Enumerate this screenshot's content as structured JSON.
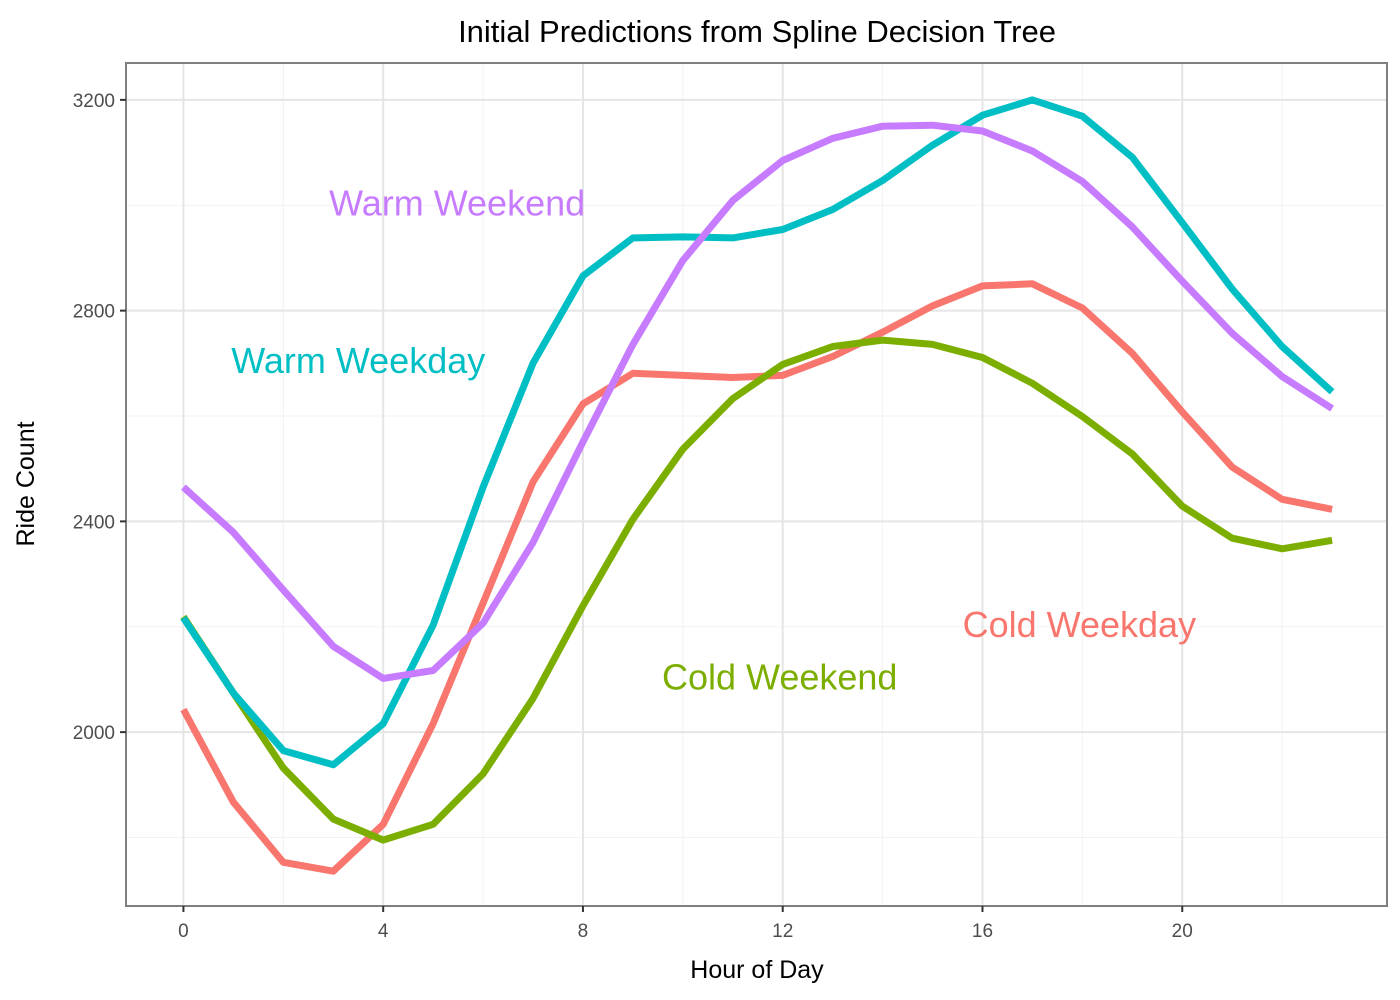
{
  "chart_data": {
    "type": "line",
    "title": "Initial Predictions from Spline Decision Tree",
    "xlabel": "Hour of Day",
    "ylabel": "Ride Count",
    "xlim": [
      -1.15,
      24.1
    ],
    "ylim": [
      1670,
      3270
    ],
    "xticks": [
      0,
      4,
      8,
      12,
      16,
      20
    ],
    "xtick_labels": [
      "0",
      "4",
      "8",
      "12",
      "16",
      "20"
    ],
    "yticks": [
      2000,
      2400,
      2800,
      3200
    ],
    "ytick_labels": [
      "2000",
      "2400",
      "2800",
      "3200"
    ],
    "grid": true,
    "legend": "none (direct labels)",
    "x": [
      0,
      1,
      2,
      3,
      4,
      5,
      6,
      7,
      8,
      9,
      10,
      11,
      12,
      13,
      14,
      15,
      16,
      17,
      18,
      19,
      20,
      21,
      22,
      23
    ],
    "series": [
      {
        "name": "Cold Weekday",
        "color": "#F8766D",
        "label_at": [
          17.94,
          2203
        ],
        "values": [
          2043,
          1867,
          1753,
          1736,
          1825,
          2016,
          2245,
          2475,
          2623,
          2681,
          2677,
          2673,
          2677,
          2713,
          2759,
          2809,
          2847,
          2851,
          2805,
          2719,
          2608,
          2503,
          2442,
          2423
        ]
      },
      {
        "name": "Cold Weekend",
        "color": "#7CAE00",
        "label_at": [
          11.94,
          2104
        ],
        "values": [
          2219,
          2074,
          1932,
          1835,
          1795,
          1825,
          1921,
          2064,
          2240,
          2404,
          2537,
          2633,
          2698,
          2732,
          2744,
          2736,
          2711,
          2662,
          2599,
          2528,
          2429,
          2368,
          2348,
          2364
        ]
      },
      {
        "name": "Warm Weekday",
        "color": "#00BFC4",
        "label_at": [
          3.5,
          2704
        ],
        "values": [
          2217,
          2074,
          1965,
          1938,
          2016,
          2203,
          2465,
          2700,
          2866,
          2938,
          2940,
          2938,
          2954,
          2992,
          3047,
          3114,
          3171,
          3200,
          3169,
          3091,
          2967,
          2841,
          2732,
          2646
        ]
      },
      {
        "name": "Warm Weekend",
        "color": "#C77CFF",
        "label_at": [
          5.48,
          3003
        ],
        "values": [
          2465,
          2379,
          2270,
          2163,
          2102,
          2117,
          2207,
          2360,
          2551,
          2736,
          2895,
          3009,
          3085,
          3127,
          3150,
          3152,
          3141,
          3103,
          3045,
          2959,
          2856,
          2757,
          2675,
          2614
        ]
      }
    ]
  }
}
